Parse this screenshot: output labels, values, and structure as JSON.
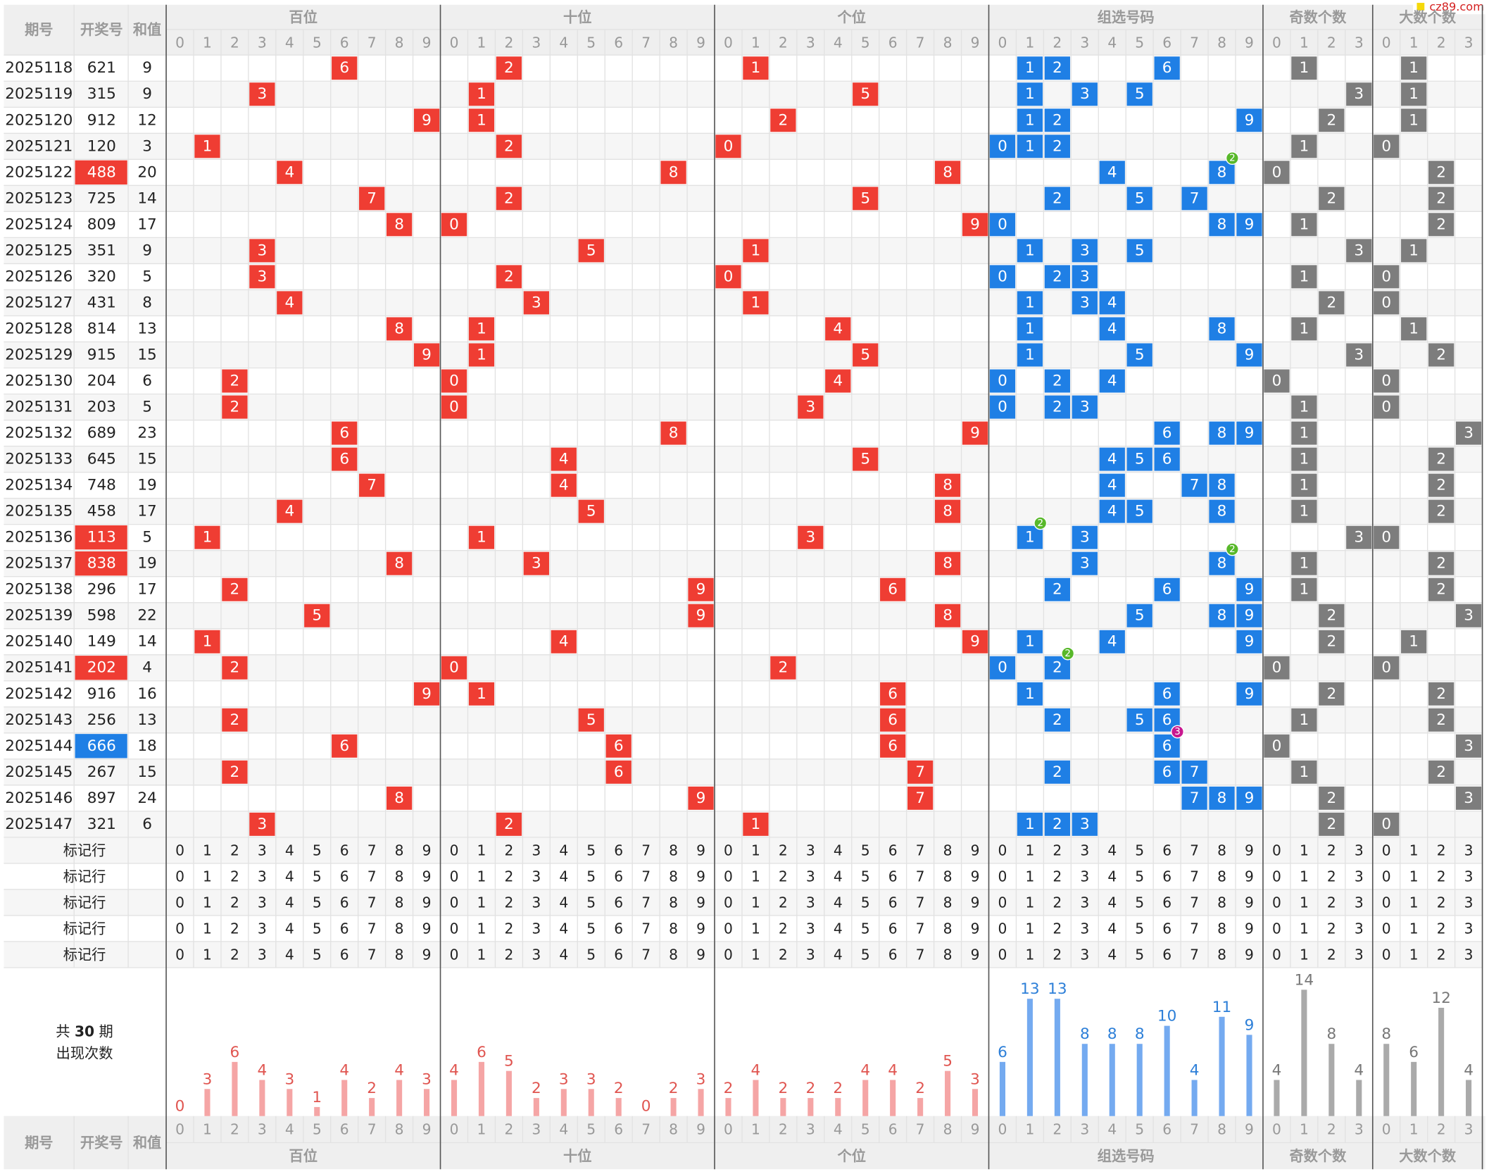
{
  "headers": {
    "issue": "期号",
    "number": "开奖号",
    "sum": "和值"
  },
  "watermark": "cz89.com",
  "marker_label": "标记行",
  "stats": {
    "prefix": "共",
    "periods": 30,
    "suffix": "期",
    "caption": "出现次数"
  },
  "sections": [
    {
      "name": "百位",
      "digits": [
        0,
        1,
        2,
        3,
        4,
        5,
        6,
        7,
        8,
        9
      ],
      "color": "#ef3d33",
      "bar_color": "#f5a5a5",
      "label_color": "#e05550",
      "counts": [
        0,
        3,
        6,
        4,
        3,
        1,
        4,
        2,
        4,
        3
      ]
    },
    {
      "name": "十位",
      "digits": [
        0,
        1,
        2,
        3,
        4,
        5,
        6,
        7,
        8,
        9
      ],
      "color": "#ef3d33",
      "bar_color": "#f5a5a5",
      "label_color": "#e05550",
      "counts": [
        4,
        6,
        5,
        2,
        3,
        3,
        2,
        0,
        2,
        3
      ]
    },
    {
      "name": "个位",
      "digits": [
        0,
        1,
        2,
        3,
        4,
        5,
        6,
        7,
        8,
        9
      ],
      "color": "#ef3d33",
      "bar_color": "#f5a5a5",
      "label_color": "#e05550",
      "counts": [
        2,
        4,
        2,
        2,
        2,
        4,
        4,
        2,
        5,
        3
      ]
    },
    {
      "name": "组选号码",
      "digits": [
        0,
        1,
        2,
        3,
        4,
        5,
        6,
        7,
        8,
        9
      ],
      "color": "#1f7fe5",
      "bar_color": "#74aaf0",
      "label_color": "#2d7fd8",
      "counts": [
        6,
        13,
        13,
        8,
        8,
        8,
        10,
        4,
        11,
        9
      ]
    },
    {
      "name": "奇数个数",
      "digits": [
        0,
        1,
        2,
        3
      ],
      "color": "#7d7d7d",
      "bar_color": "#aaaaaa",
      "label_color": "#777777",
      "counts": [
        4,
        14,
        8,
        4
      ]
    },
    {
      "name": "大数个数",
      "digits": [
        0,
        1,
        2,
        3
      ],
      "color": "#7d7d7d",
      "bar_color": "#aaaaaa",
      "label_color": "#777777",
      "counts": [
        8,
        6,
        12,
        4
      ]
    }
  ],
  "rows": [
    {
      "issue": "2025118",
      "number": "621",
      "sum": 9,
      "positions": [
        6,
        2,
        1
      ],
      "group": [
        1,
        2,
        6
      ],
      "odd": 1,
      "big": 1
    },
    {
      "issue": "2025119",
      "number": "315",
      "sum": 9,
      "positions": [
        3,
        1,
        5
      ],
      "group": [
        1,
        3,
        5
      ],
      "odd": 3,
      "big": 1
    },
    {
      "issue": "2025120",
      "number": "912",
      "sum": 12,
      "positions": [
        9,
        1,
        2
      ],
      "group": [
        1,
        2,
        9
      ],
      "odd": 2,
      "big": 1
    },
    {
      "issue": "2025121",
      "number": "120",
      "sum": 3,
      "positions": [
        1,
        2,
        0
      ],
      "group": [
        0,
        1,
        2
      ],
      "odd": 1,
      "big": 0
    },
    {
      "issue": "2025122",
      "number": "488",
      "sum": 20,
      "positions": [
        4,
        8,
        8
      ],
      "group": [
        4,
        8
      ],
      "odd": 0,
      "big": 2,
      "repeat": {
        "digit": 8,
        "times": 2
      }
    },
    {
      "issue": "2025123",
      "number": "725",
      "sum": 14,
      "positions": [
        7,
        2,
        5
      ],
      "group": [
        2,
        5,
        7
      ],
      "odd": 2,
      "big": 2
    },
    {
      "issue": "2025124",
      "number": "809",
      "sum": 17,
      "positions": [
        8,
        0,
        9
      ],
      "group": [
        0,
        8,
        9
      ],
      "odd": 1,
      "big": 2
    },
    {
      "issue": "2025125",
      "number": "351",
      "sum": 9,
      "positions": [
        3,
        5,
        1
      ],
      "group": [
        1,
        3,
        5
      ],
      "odd": 3,
      "big": 1
    },
    {
      "issue": "2025126",
      "number": "320",
      "sum": 5,
      "positions": [
        3,
        2,
        0
      ],
      "group": [
        0,
        2,
        3
      ],
      "odd": 1,
      "big": 0
    },
    {
      "issue": "2025127",
      "number": "431",
      "sum": 8,
      "positions": [
        4,
        3,
        1
      ],
      "group": [
        1,
        3,
        4
      ],
      "odd": 2,
      "big": 0
    },
    {
      "issue": "2025128",
      "number": "814",
      "sum": 13,
      "positions": [
        8,
        1,
        4
      ],
      "group": [
        1,
        4,
        8
      ],
      "odd": 1,
      "big": 1
    },
    {
      "issue": "2025129",
      "number": "915",
      "sum": 15,
      "positions": [
        9,
        1,
        5
      ],
      "group": [
        1,
        5,
        9
      ],
      "odd": 3,
      "big": 2
    },
    {
      "issue": "2025130",
      "number": "204",
      "sum": 6,
      "positions": [
        2,
        0,
        4
      ],
      "group": [
        0,
        2,
        4
      ],
      "odd": 0,
      "big": 0
    },
    {
      "issue": "2025131",
      "number": "203",
      "sum": 5,
      "positions": [
        2,
        0,
        3
      ],
      "group": [
        0,
        2,
        3
      ],
      "odd": 1,
      "big": 0
    },
    {
      "issue": "2025132",
      "number": "689",
      "sum": 23,
      "positions": [
        6,
        8,
        9
      ],
      "group": [
        6,
        8,
        9
      ],
      "odd": 1,
      "big": 3
    },
    {
      "issue": "2025133",
      "number": "645",
      "sum": 15,
      "positions": [
        6,
        4,
        5
      ],
      "group": [
        4,
        5,
        6
      ],
      "odd": 1,
      "big": 2
    },
    {
      "issue": "2025134",
      "number": "748",
      "sum": 19,
      "positions": [
        7,
        4,
        8
      ],
      "group": [
        4,
        7,
        8
      ],
      "odd": 1,
      "big": 2
    },
    {
      "issue": "2025135",
      "number": "458",
      "sum": 17,
      "positions": [
        4,
        5,
        8
      ],
      "group": [
        4,
        5,
        8
      ],
      "odd": 1,
      "big": 2
    },
    {
      "issue": "2025136",
      "number": "113",
      "sum": 5,
      "positions": [
        1,
        1,
        3
      ],
      "group": [
        1,
        3
      ],
      "odd": 3,
      "big": 0,
      "repeat": {
        "digit": 1,
        "times": 2
      }
    },
    {
      "issue": "2025137",
      "number": "838",
      "sum": 19,
      "positions": [
        8,
        3,
        8
      ],
      "group": [
        3,
        8
      ],
      "odd": 1,
      "big": 2,
      "repeat": {
        "digit": 8,
        "times": 2
      }
    },
    {
      "issue": "2025138",
      "number": "296",
      "sum": 17,
      "positions": [
        2,
        9,
        6
      ],
      "group": [
        2,
        6,
        9
      ],
      "odd": 1,
      "big": 2
    },
    {
      "issue": "2025139",
      "number": "598",
      "sum": 22,
      "positions": [
        5,
        9,
        8
      ],
      "group": [
        5,
        8,
        9
      ],
      "odd": 2,
      "big": 3
    },
    {
      "issue": "2025140",
      "number": "149",
      "sum": 14,
      "positions": [
        1,
        4,
        9
      ],
      "group": [
        1,
        4,
        9
      ],
      "odd": 2,
      "big": 1
    },
    {
      "issue": "2025141",
      "number": "202",
      "sum": 4,
      "positions": [
        2,
        0,
        2
      ],
      "group": [
        0,
        2
      ],
      "odd": 0,
      "big": 0,
      "repeat": {
        "digit": 2,
        "times": 2
      }
    },
    {
      "issue": "2025142",
      "number": "916",
      "sum": 16,
      "positions": [
        9,
        1,
        6
      ],
      "group": [
        1,
        6,
        9
      ],
      "odd": 2,
      "big": 2
    },
    {
      "issue": "2025143",
      "number": "256",
      "sum": 13,
      "positions": [
        2,
        5,
        6
      ],
      "group": [
        2,
        5,
        6
      ],
      "odd": 1,
      "big": 2
    },
    {
      "issue": "2025144",
      "number": "666",
      "sum": 18,
      "positions": [
        6,
        6,
        6
      ],
      "group": [
        6
      ],
      "odd": 0,
      "big": 3,
      "repeat": {
        "digit": 6,
        "times": 3
      }
    },
    {
      "issue": "2025145",
      "number": "267",
      "sum": 15,
      "positions": [
        2,
        6,
        7
      ],
      "group": [
        2,
        6,
        7
      ],
      "odd": 1,
      "big": 2
    },
    {
      "issue": "2025146",
      "number": "897",
      "sum": 24,
      "positions": [
        8,
        9,
        7
      ],
      "group": [
        7,
        8,
        9
      ],
      "odd": 2,
      "big": 3
    },
    {
      "issue": "2025147",
      "number": "321",
      "sum": 6,
      "positions": [
        3,
        2,
        1
      ],
      "group": [
        1,
        2,
        3
      ],
      "odd": 2,
      "big": 0
    }
  ]
}
